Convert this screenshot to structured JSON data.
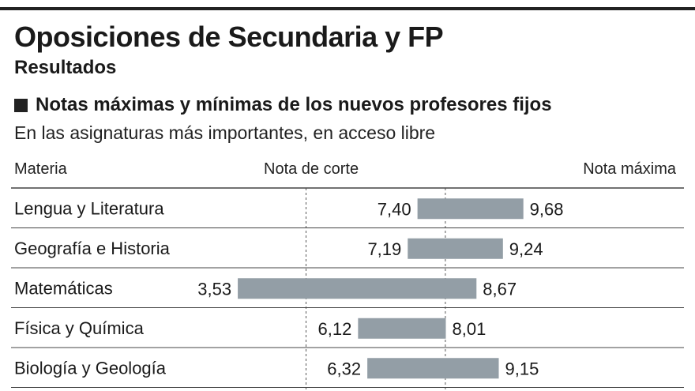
{
  "header": {
    "title": "Oposiciones de Secundaria y FP",
    "subtitle": "Resultados"
  },
  "section": {
    "title": "Notas máximas y mínimas de los nuevos profesores fijos",
    "subtitle": "En las asignaturas más importantes, en acceso libre",
    "icon": "square-bullet-icon"
  },
  "columns": {
    "category": "Materia",
    "min": "Nota de corte",
    "max": "Nota máxima"
  },
  "colors": {
    "bar": "#939ea6",
    "rule": "#444444"
  },
  "chart_data": {
    "type": "bar",
    "orientation": "horizontal-range",
    "categories": [
      "Lengua y Literatura",
      "Geografía e Historia",
      "Matemáticas",
      "Física y Química",
      "Biología y Geología"
    ],
    "series": [
      {
        "name": "Nota de corte",
        "values": [
          7.4,
          7.19,
          3.53,
          6.12,
          6.32
        ],
        "labels": [
          "7,40",
          "7,19",
          "3,53",
          "6,12",
          "6,32"
        ]
      },
      {
        "name": "Nota máxima",
        "values": [
          9.68,
          9.24,
          8.67,
          8.01,
          9.15
        ],
        "labels": [
          "9,68",
          "9,24",
          "8,67",
          "8,01",
          "9,15"
        ]
      }
    ],
    "xlim": [
      0,
      10
    ],
    "reference_lines": [
      5,
      8
    ],
    "grid": false
  }
}
